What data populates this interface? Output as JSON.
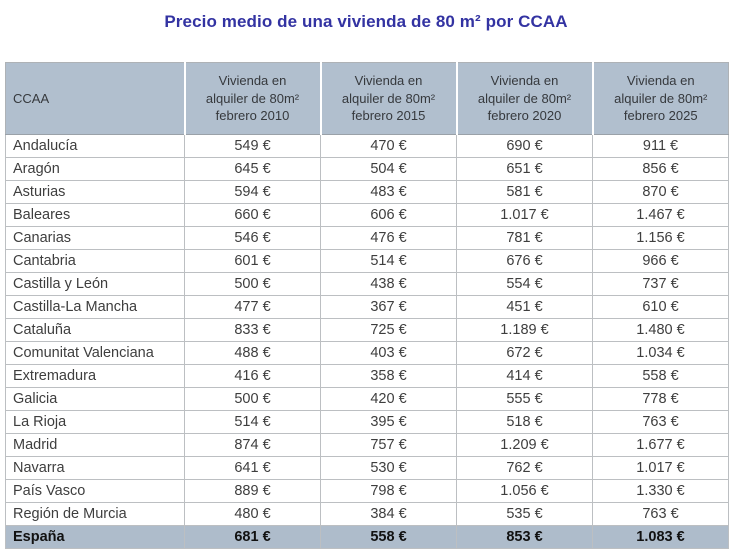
{
  "title": "Precio medio de una vivienda de 80 m² por CCAA",
  "colors": {
    "title_text": "#3333a2",
    "header_background": "#b1bfce",
    "total_row_background": "#aebccb",
    "grid_border": "#bcbfc2",
    "cell_text": "#3e3e3e",
    "total_text": "#111111"
  },
  "table": {
    "columns": [
      "CCAA",
      "Vivienda en\nalquiler de 80m²\nfebrero 2010",
      "Vivienda en\nalquiler de 80m²\nfebrero 2015",
      "Vivienda en\nalquiler de 80m²\nfebrero 2020",
      "Vivienda en\nalquiler de 80m²\nfebrero 2025"
    ],
    "rows": [
      {
        "ccaa": "Andalucía",
        "values": [
          "549 €",
          "470 €",
          "690 €",
          "911 €"
        ]
      },
      {
        "ccaa": "Aragón",
        "values": [
          "645 €",
          "504 €",
          "651 €",
          "856 €"
        ]
      },
      {
        "ccaa": "Asturias",
        "values": [
          "594 €",
          "483 €",
          "581 €",
          "870 €"
        ]
      },
      {
        "ccaa": "Baleares",
        "values": [
          "660 €",
          "606 €",
          "1.017 €",
          "1.467 €"
        ]
      },
      {
        "ccaa": "Canarias",
        "values": [
          "546 €",
          "476 €",
          "781 €",
          "1.156 €"
        ]
      },
      {
        "ccaa": "Cantabria",
        "values": [
          "601 €",
          "514 €",
          "676 €",
          "966 €"
        ]
      },
      {
        "ccaa": "Castilla y León",
        "values": [
          "500 €",
          "438 €",
          "554 €",
          "737 €"
        ]
      },
      {
        "ccaa": "Castilla-La Mancha",
        "values": [
          "477 €",
          "367 €",
          "451 €",
          "610 €"
        ]
      },
      {
        "ccaa": "Cataluña",
        "values": [
          "833 €",
          "725 €",
          "1.189 €",
          "1.480 €"
        ]
      },
      {
        "ccaa": "Comunitat Valenciana",
        "values": [
          "488 €",
          "403 €",
          "672 €",
          "1.034 €"
        ]
      },
      {
        "ccaa": "Extremadura",
        "values": [
          "416 €",
          "358 €",
          "414 €",
          "558 €"
        ]
      },
      {
        "ccaa": "Galicia",
        "values": [
          "500 €",
          "420 €",
          "555 €",
          "778 €"
        ]
      },
      {
        "ccaa": "La Rioja",
        "values": [
          "514 €",
          "395 €",
          "518 €",
          "763 €"
        ]
      },
      {
        "ccaa": "Madrid",
        "values": [
          "874 €",
          "757 €",
          "1.209 €",
          "1.677 €"
        ]
      },
      {
        "ccaa": "Navarra",
        "values": [
          "641 €",
          "530 €",
          "762 €",
          "1.017 €"
        ]
      },
      {
        "ccaa": "País Vasco",
        "values": [
          "889 €",
          "798 €",
          "1.056 €",
          "1.330 €"
        ]
      },
      {
        "ccaa": "Región de Murcia",
        "values": [
          "480 €",
          "384 €",
          "535 €",
          "763 €"
        ]
      }
    ],
    "total_row": {
      "ccaa": "España",
      "values": [
        "681 €",
        "558 €",
        "853 €",
        "1.083 €"
      ]
    }
  },
  "chart_data": {
    "type": "table",
    "title": "Precio medio de una vivienda de 80 m² por CCAA",
    "unit": "€",
    "row_label": "CCAA",
    "categories": [
      "Andalucía",
      "Aragón",
      "Asturias",
      "Baleares",
      "Canarias",
      "Cantabria",
      "Castilla y León",
      "Castilla-La Mancha",
      "Cataluña",
      "Comunitat Valenciana",
      "Extremadura",
      "Galicia",
      "La Rioja",
      "Madrid",
      "Navarra",
      "País Vasco",
      "Región de Murcia"
    ],
    "series": [
      {
        "name": "Vivienda en alquiler de 80m² febrero 2010",
        "values": [
          549,
          645,
          594,
          660,
          546,
          601,
          500,
          477,
          833,
          488,
          416,
          500,
          514,
          874,
          641,
          889,
          480
        ]
      },
      {
        "name": "Vivienda en alquiler de 80m² febrero 2015",
        "values": [
          470,
          504,
          483,
          606,
          476,
          514,
          438,
          367,
          725,
          403,
          358,
          420,
          395,
          757,
          530,
          798,
          384
        ]
      },
      {
        "name": "Vivienda en alquiler de 80m² febrero 2020",
        "values": [
          690,
          651,
          581,
          1017,
          781,
          676,
          554,
          451,
          1189,
          672,
          414,
          555,
          518,
          1209,
          762,
          1056,
          535
        ]
      },
      {
        "name": "Vivienda en alquiler de 80m² febrero 2025",
        "values": [
          911,
          856,
          870,
          1467,
          1156,
          966,
          737,
          610,
          1480,
          1034,
          558,
          778,
          763,
          1677,
          1017,
          1330,
          763
        ]
      }
    ],
    "total": {
      "name": "España",
      "values": [
        681,
        558,
        853,
        1083
      ]
    }
  }
}
